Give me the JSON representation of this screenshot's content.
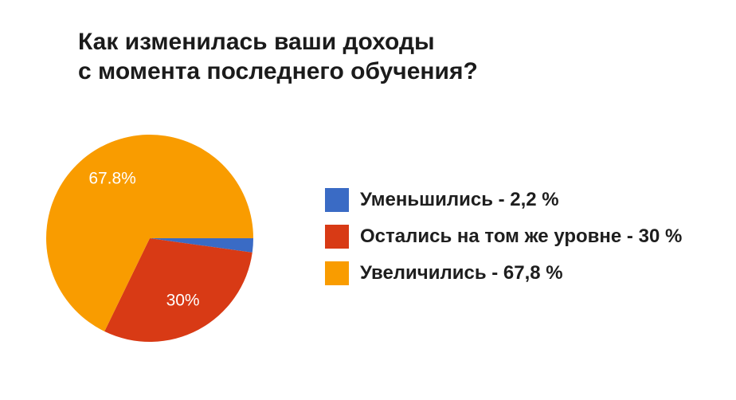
{
  "title": {
    "line1": "Как изменилась ваши доходы",
    "line2": "с момента последнего обучения?"
  },
  "chart_data": {
    "type": "pie",
    "title": "Как изменилась ваши доходы с момента последнего обучения?",
    "start_angle_deg": 0,
    "direction": "clockwise",
    "legend_position": "right",
    "label_color": "#FFFFFF",
    "slices": [
      {
        "name": "decreased",
        "label": "Уменьшились",
        "value": 2.2,
        "color": "#3A6BC5",
        "pie_label": ""
      },
      {
        "name": "same-level",
        "label": "Остались на том же уровне",
        "value": 30,
        "color": "#D83A15",
        "pie_label": "30%"
      },
      {
        "name": "increased",
        "label": "Увеличились",
        "value": 67.8,
        "color": "#F99C00",
        "pie_label": "67.8%"
      }
    ]
  },
  "legend": {
    "items": [
      {
        "label": "Уменьшились - 2,2 %",
        "color": "#3A6BC5"
      },
      {
        "label": "Остались на том же уровне - 30 %",
        "color": "#D83A15"
      },
      {
        "label": "Увеличились - 67,8 %",
        "color": "#F99C00"
      }
    ]
  }
}
